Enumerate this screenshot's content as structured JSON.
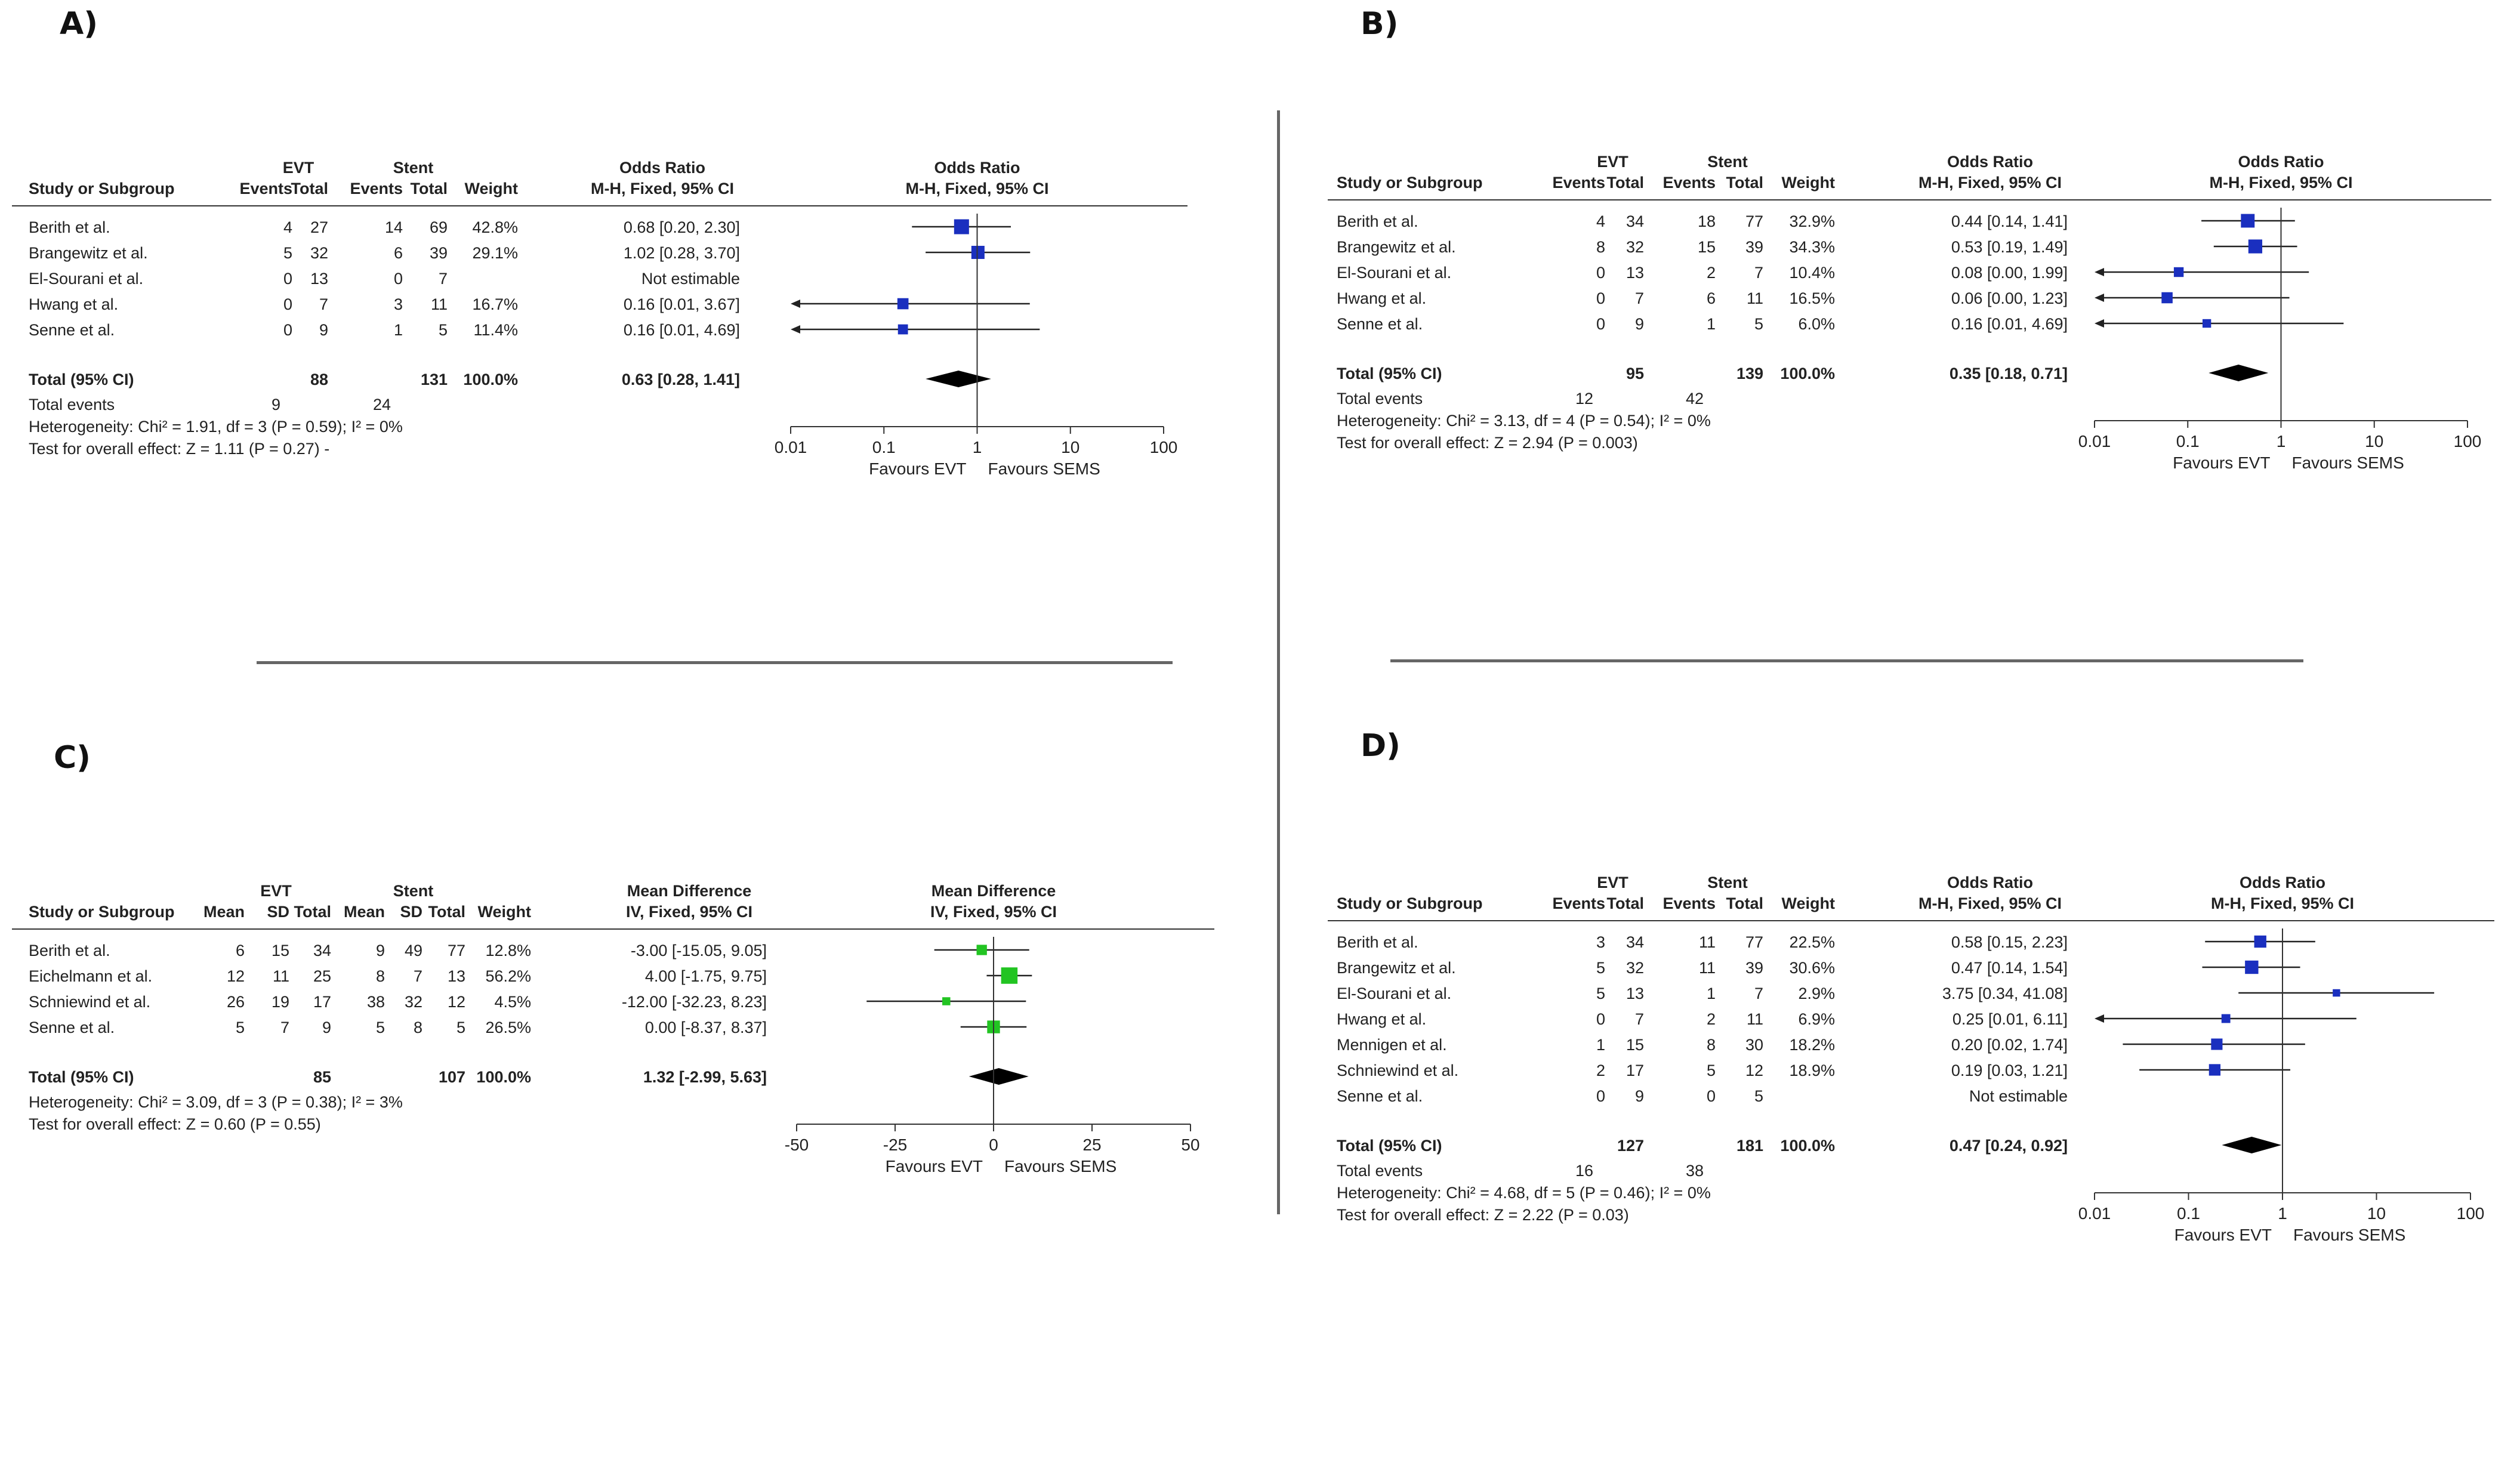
{
  "panels": [
    {
      "label": "A)",
      "measure": "Odds Ratio",
      "method": "M-H, Fixed, 95% CI",
      "group_labels": [
        "EVT",
        "Stent"
      ],
      "stat_cols": [
        "Events",
        "Total"
      ],
      "study_header": "Study or Subgroup",
      "weight_header": "Weight",
      "rows": [
        {
          "name": "Berith et al.",
          "a": [
            "4",
            "27"
          ],
          "b": [
            "14",
            "69"
          ],
          "weight": "42.8%",
          "ci_text": "0.68 [0.20, 2.30]",
          "est": 0.68,
          "lo": 0.2,
          "hi": 2.3,
          "w": 42.8
        },
        {
          "name": "Brangewitz et al.",
          "a": [
            "5",
            "32"
          ],
          "b": [
            "6",
            "39"
          ],
          "weight": "29.1%",
          "ci_text": "1.02 [0.28, 3.70]",
          "est": 1.02,
          "lo": 0.28,
          "hi": 3.7,
          "w": 29.1
        },
        {
          "name": "El-Sourani et al.",
          "a": [
            "0",
            "13"
          ],
          "b": [
            "0",
            "7"
          ],
          "weight": "",
          "ci_text": "Not estimable",
          "est": null,
          "lo": null,
          "hi": null,
          "w": 0
        },
        {
          "name": "Hwang et al.",
          "a": [
            "0",
            "7"
          ],
          "b": [
            "3",
            "11"
          ],
          "weight": "16.7%",
          "ci_text": "0.16 [0.01, 3.67]",
          "est": 0.16,
          "lo": 0.01,
          "hi": 3.67,
          "w": 16.7
        },
        {
          "name": "Senne et al.",
          "a": [
            "0",
            "9"
          ],
          "b": [
            "1",
            "5"
          ],
          "weight": "11.4%",
          "ci_text": "0.16 [0.01, 4.69]",
          "est": 0.16,
          "lo": 0.01,
          "hi": 4.69,
          "w": 11.4
        }
      ],
      "total": {
        "name": "Total (95% CI)",
        "a_total": "88",
        "b_total": "131",
        "weight": "100.0%",
        "ci_text": "0.63 [0.28, 1.41]",
        "est": 0.63,
        "lo": 0.28,
        "hi": 1.41
      },
      "events": {
        "label": "Total events",
        "a": "9",
        "b": "24"
      },
      "heterogeneity": "Heterogeneity: Chi² = 1.91, df = 3 (P = 0.59); I² = 0%",
      "overall": "Test for overall effect: Z = 1.11 (P = 0.27) -",
      "axis": {
        "scale": "log",
        "min": 0.01,
        "max": 100,
        "ticks": [
          "0.01",
          "0.1",
          "1",
          "10",
          "100"
        ],
        "null_value": 1
      },
      "favours_left": "Favours EVT",
      "favours_right": "Favours SEMS",
      "marker_color": "#1a2fbf"
    },
    {
      "label": "B)",
      "measure": "Odds Ratio",
      "method": "M-H, Fixed, 95% CI",
      "group_labels": [
        "EVT",
        "Stent"
      ],
      "stat_cols": [
        "Events",
        "Total"
      ],
      "study_header": "Study or Subgroup",
      "weight_header": "Weight",
      "rows": [
        {
          "name": "Berith et al.",
          "a": [
            "4",
            "34"
          ],
          "b": [
            "18",
            "77"
          ],
          "weight": "32.9%",
          "ci_text": "0.44 [0.14, 1.41]",
          "est": 0.44,
          "lo": 0.14,
          "hi": 1.41,
          "w": 32.9
        },
        {
          "name": "Brangewitz et al.",
          "a": [
            "8",
            "32"
          ],
          "b": [
            "15",
            "39"
          ],
          "weight": "34.3%",
          "ci_text": "0.53 [0.19, 1.49]",
          "est": 0.53,
          "lo": 0.19,
          "hi": 1.49,
          "w": 34.3
        },
        {
          "name": "El-Sourani et al.",
          "a": [
            "0",
            "13"
          ],
          "b": [
            "2",
            "7"
          ],
          "weight": "10.4%",
          "ci_text": "0.08 [0.00, 1.99]",
          "est": 0.08,
          "lo": 0.001,
          "hi": 1.99,
          "w": 10.4
        },
        {
          "name": "Hwang et al.",
          "a": [
            "0",
            "7"
          ],
          "b": [
            "6",
            "11"
          ],
          "weight": "16.5%",
          "ci_text": "0.06 [0.00, 1.23]",
          "est": 0.06,
          "lo": 0.001,
          "hi": 1.23,
          "w": 16.5
        },
        {
          "name": "Senne et al.",
          "a": [
            "0",
            "9"
          ],
          "b": [
            "1",
            "5"
          ],
          "weight": "6.0%",
          "ci_text": "0.16 [0.01, 4.69]",
          "est": 0.16,
          "lo": 0.01,
          "hi": 4.69,
          "w": 6.0
        }
      ],
      "total": {
        "name": "Total (95% CI)",
        "a_total": "95",
        "b_total": "139",
        "weight": "100.0%",
        "ci_text": "0.35 [0.18, 0.71]",
        "est": 0.35,
        "lo": 0.18,
        "hi": 0.71
      },
      "events": {
        "label": "Total events",
        "a": "12",
        "b": "42"
      },
      "heterogeneity": "Heterogeneity: Chi² = 3.13, df = 4 (P = 0.54); I² = 0%",
      "overall": "Test for overall effect: Z = 2.94 (P = 0.003)",
      "axis": {
        "scale": "log",
        "min": 0.01,
        "max": 100,
        "ticks": [
          "0.01",
          "0.1",
          "1",
          "10",
          "100"
        ],
        "null_value": 1
      },
      "favours_left": "Favours EVT",
      "favours_right": "Favours SEMS",
      "marker_color": "#1a2fbf"
    },
    {
      "label": "C)",
      "measure": "Mean Difference",
      "method": "IV, Fixed, 95% CI",
      "group_labels": [
        "EVT",
        "Stent"
      ],
      "stat_cols": [
        "Mean",
        "SD",
        "Total"
      ],
      "study_header": "Study or Subgroup",
      "weight_header": "Weight",
      "rows": [
        {
          "name": "Berith et al.",
          "a": [
            "6",
            "15",
            "34"
          ],
          "b": [
            "9",
            "49",
            "77"
          ],
          "weight": "12.8%",
          "ci_text": "-3.00 [-15.05, 9.05]",
          "est": -3.0,
          "lo": -15.05,
          "hi": 9.05,
          "w": 12.8
        },
        {
          "name": "Eichelmann et al.",
          "a": [
            "12",
            "11",
            "25"
          ],
          "b": [
            "8",
            "7",
            "13"
          ],
          "weight": "56.2%",
          "ci_text": "4.00 [-1.75, 9.75]",
          "est": 4.0,
          "lo": -1.75,
          "hi": 9.75,
          "w": 56.2
        },
        {
          "name": "Schniewind et al.",
          "a": [
            "26",
            "19",
            "17"
          ],
          "b": [
            "38",
            "32",
            "12"
          ],
          "weight": "4.5%",
          "ci_text": "-12.00 [-32.23, 8.23]",
          "est": -12.0,
          "lo": -32.23,
          "hi": 8.23,
          "w": 4.5
        },
        {
          "name": "Senne et al.",
          "a": [
            "5",
            "7",
            "9"
          ],
          "b": [
            "5",
            "8",
            "5"
          ],
          "weight": "26.5%",
          "ci_text": "0.00 [-8.37, 8.37]",
          "est": 0.0,
          "lo": -8.37,
          "hi": 8.37,
          "w": 26.5
        }
      ],
      "total": {
        "name": "Total (95% CI)",
        "a_total": "85",
        "b_total": "107",
        "weight": "100.0%",
        "ci_text": "1.32 [-2.99, 5.63]",
        "est": 1.32,
        "lo": -2.99,
        "hi": 5.63
      },
      "events": null,
      "heterogeneity": "Heterogeneity: Chi² = 3.09, df = 3 (P = 0.38); I² = 3%",
      "overall": "Test for overall effect: Z = 0.60 (P = 0.55)",
      "axis": {
        "scale": "linear",
        "min": -50,
        "max": 50,
        "ticks": [
          "-50",
          "-25",
          "0",
          "25",
          "50"
        ],
        "null_value": 0
      },
      "favours_left": "Favours EVT",
      "favours_right": "Favours SEMS",
      "marker_color": "#22c422"
    },
    {
      "label": "D)",
      "measure": "Odds Ratio",
      "method": "M-H, Fixed, 95% CI",
      "group_labels": [
        "EVT",
        "Stent"
      ],
      "stat_cols": [
        "Events",
        "Total"
      ],
      "study_header": "Study or Subgroup",
      "weight_header": "Weight",
      "rows": [
        {
          "name": "Berith et al.",
          "a": [
            "3",
            "34"
          ],
          "b": [
            "11",
            "77"
          ],
          "weight": "22.5%",
          "ci_text": "0.58 [0.15, 2.23]",
          "est": 0.58,
          "lo": 0.15,
          "hi": 2.23,
          "w": 22.5
        },
        {
          "name": "Brangewitz et al.",
          "a": [
            "5",
            "32"
          ],
          "b": [
            "11",
            "39"
          ],
          "weight": "30.6%",
          "ci_text": "0.47 [0.14, 1.54]",
          "est": 0.47,
          "lo": 0.14,
          "hi": 1.54,
          "w": 30.6
        },
        {
          "name": "El-Sourani et al.",
          "a": [
            "5",
            "13"
          ],
          "b": [
            "1",
            "7"
          ],
          "weight": "2.9%",
          "ci_text": "3.75 [0.34, 41.08]",
          "est": 3.75,
          "lo": 0.34,
          "hi": 41.08,
          "w": 2.9
        },
        {
          "name": "Hwang et al.",
          "a": [
            "0",
            "7"
          ],
          "b": [
            "2",
            "11"
          ],
          "weight": "6.9%",
          "ci_text": "0.25 [0.01, 6.11]",
          "est": 0.25,
          "lo": 0.01,
          "hi": 6.11,
          "w": 6.9
        },
        {
          "name": "Mennigen et al.",
          "a": [
            "1",
            "15"
          ],
          "b": [
            "8",
            "30"
          ],
          "weight": "18.2%",
          "ci_text": "0.20 [0.02, 1.74]",
          "est": 0.2,
          "lo": 0.02,
          "hi": 1.74,
          "w": 18.2
        },
        {
          "name": "Schniewind et al.",
          "a": [
            "2",
            "17"
          ],
          "b": [
            "5",
            "12"
          ],
          "weight": "18.9%",
          "ci_text": "0.19 [0.03, 1.21]",
          "est": 0.19,
          "lo": 0.03,
          "hi": 1.21,
          "w": 18.9
        },
        {
          "name": "Senne et al.",
          "a": [
            "0",
            "9"
          ],
          "b": [
            "0",
            "5"
          ],
          "weight": "",
          "ci_text": "Not estimable",
          "est": null,
          "lo": null,
          "hi": null,
          "w": 0
        }
      ],
      "total": {
        "name": "Total (95% CI)",
        "a_total": "127",
        "b_total": "181",
        "weight": "100.0%",
        "ci_text": "0.47 [0.24, 0.92]",
        "est": 0.47,
        "lo": 0.24,
        "hi": 0.92
      },
      "events": {
        "label": "Total events",
        "a": "16",
        "b": "38"
      },
      "heterogeneity": "Heterogeneity: Chi² = 4.68, df = 5 (P = 0.46); I² = 0%",
      "overall": "Test for overall effect: Z = 2.22 (P = 0.03)",
      "axis": {
        "scale": "log",
        "min": 0.01,
        "max": 100,
        "ticks": [
          "0.01",
          "0.1",
          "1",
          "10",
          "100"
        ],
        "null_value": 1
      },
      "favours_left": "Favours EVT",
      "favours_right": "Favours SEMS",
      "marker_color": "#1a2fbf"
    }
  ],
  "chart_data": [
    {
      "type": "forest",
      "panel": "A)",
      "measure": "Odds Ratio",
      "scale": "log",
      "xlim": [
        0.01,
        100
      ],
      "categories": [
        "Berith et al.",
        "Brangewitz et al.",
        "El-Sourani et al.",
        "Hwang et al.",
        "Senne et al.",
        "Total (95% CI)"
      ],
      "estimates": [
        0.68,
        1.02,
        null,
        0.16,
        0.16,
        0.63
      ],
      "lower": [
        0.2,
        0.28,
        null,
        0.01,
        0.01,
        0.28
      ],
      "upper": [
        2.3,
        3.7,
        null,
        3.67,
        4.69,
        1.41
      ],
      "weights": [
        42.8,
        29.1,
        null,
        16.7,
        11.4,
        100.0
      ]
    },
    {
      "type": "forest",
      "panel": "B)",
      "measure": "Odds Ratio",
      "scale": "log",
      "xlim": [
        0.01,
        100
      ],
      "categories": [
        "Berith et al.",
        "Brangewitz et al.",
        "El-Sourani et al.",
        "Hwang et al.",
        "Senne et al.",
        "Total (95% CI)"
      ],
      "estimates": [
        0.44,
        0.53,
        0.08,
        0.06,
        0.16,
        0.35
      ],
      "lower": [
        0.14,
        0.19,
        0.0,
        0.0,
        0.01,
        0.18
      ],
      "upper": [
        1.41,
        1.49,
        1.99,
        1.23,
        4.69,
        0.71
      ],
      "weights": [
        32.9,
        34.3,
        10.4,
        16.5,
        6.0,
        100.0
      ]
    },
    {
      "type": "forest",
      "panel": "C)",
      "measure": "Mean Difference",
      "scale": "linear",
      "xlim": [
        -50,
        50
      ],
      "categories": [
        "Berith et al.",
        "Eichelmann et al.",
        "Schniewind et al.",
        "Senne et al.",
        "Total (95% CI)"
      ],
      "estimates": [
        -3.0,
        4.0,
        -12.0,
        0.0,
        1.32
      ],
      "lower": [
        -15.05,
        -1.75,
        -32.23,
        -8.37,
        -2.99
      ],
      "upper": [
        9.05,
        9.75,
        8.23,
        8.37,
        5.63
      ],
      "weights": [
        12.8,
        56.2,
        4.5,
        26.5,
        100.0
      ]
    },
    {
      "type": "forest",
      "panel": "D)",
      "measure": "Odds Ratio",
      "scale": "log",
      "xlim": [
        0.01,
        100
      ],
      "categories": [
        "Berith et al.",
        "Brangewitz et al.",
        "El-Sourani et al.",
        "Hwang et al.",
        "Mennigen et al.",
        "Schniewind et al.",
        "Senne et al.",
        "Total (95% CI)"
      ],
      "estimates": [
        0.58,
        0.47,
        3.75,
        0.25,
        0.2,
        0.19,
        null,
        0.47
      ],
      "lower": [
        0.15,
        0.14,
        0.34,
        0.01,
        0.02,
        0.03,
        null,
        0.24
      ],
      "upper": [
        2.23,
        1.54,
        41.08,
        6.11,
        1.74,
        1.21,
        null,
        0.92
      ],
      "weights": [
        22.5,
        30.6,
        2.9,
        6.9,
        18.2,
        18.9,
        null,
        100.0
      ]
    }
  ]
}
